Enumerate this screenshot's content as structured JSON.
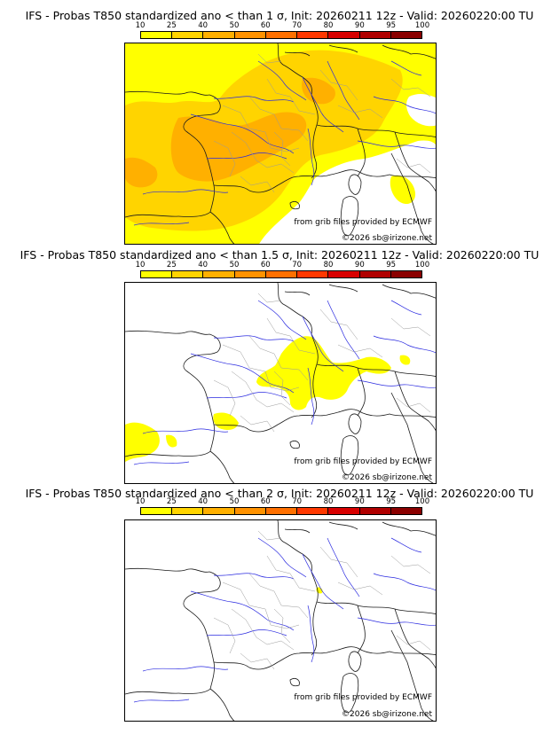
{
  "colorbar": {
    "ticks": [
      "10",
      "25",
      "40",
      "50",
      "60",
      "70",
      "80",
      "90",
      "95",
      "100"
    ],
    "colors": [
      "#ffff00",
      "#ffd400",
      "#ffb000",
      "#ff9200",
      "#ff7000",
      "#ff3800",
      "#d80000",
      "#b00000",
      "#8a0000",
      "#5a0000"
    ]
  },
  "map_colors": {
    "border": "#1a1a1a",
    "river": "#2a2ae0",
    "admin": "#9a9a9a",
    "prob_10": "#ffff00",
    "prob_25": "#ffd400",
    "prob_40": "#ffb000"
  },
  "panels": [
    {
      "title": "IFS - Probas T850  standardized ano < than 1 σ, Init: 20260211 12z - Valid: 20260220:00 TU",
      "credit_source": "from grib files provided by ECMWF",
      "credit_copy": "©2026 sb@irizone.net"
    },
    {
      "title": "IFS - Probas T850  standardized ano < than 1.5 σ, Init: 20260211 12z - Valid: 20260220:00 TU",
      "credit_source": "from grib files provided by ECMWF",
      "credit_copy": "©2026 sb@irizone.net"
    },
    {
      "title": "IFS - Probas T850  standardized ano < than 2 σ, Init: 20260211 12z - Valid: 20260220:00 TU",
      "credit_source": "from grib files provided by ECMWF",
      "credit_copy": "©2026 sb@irizone.net"
    }
  ]
}
